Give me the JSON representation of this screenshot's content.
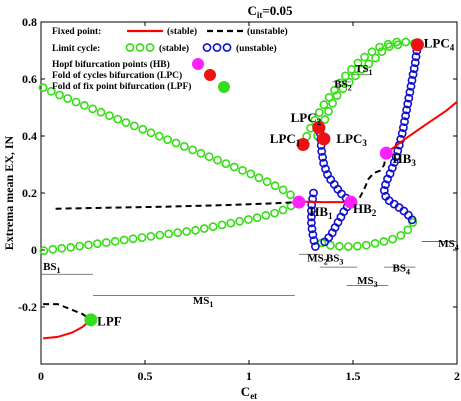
{
  "chart_data": {
    "type": "scatter",
    "title": {
      "base": "C",
      "sub": "it",
      "rest": "=0.05"
    },
    "xlabel": {
      "base": "C",
      "sub": "et"
    },
    "ylabel": "Extrema mean EX, IN",
    "xlim": [
      0,
      2
    ],
    "ylim": [
      -0.4,
      0.8
    ],
    "xticks": [
      {
        "v": 0,
        "t": "0"
      },
      {
        "v": 0.5,
        "t": "0.5"
      },
      {
        "v": 1,
        "t": "1"
      },
      {
        "v": 1.5,
        "t": "1.5"
      },
      {
        "v": 2,
        "t": "2"
      }
    ],
    "yticks": [
      {
        "v": -0.2,
        "t": "-0.2"
      },
      {
        "v": 0,
        "t": "0"
      },
      {
        "v": 0.2,
        "t": "0.2"
      },
      {
        "v": 0.4,
        "t": "0.4"
      },
      {
        "v": 0.6,
        "t": "0.6"
      },
      {
        "v": 0.8,
        "t": "0.8"
      }
    ],
    "grid": false,
    "legend_position": "top-left",
    "legend": {
      "fixed_point": "Fixed point:",
      "stable": "(stable)",
      "unstable": "(unstable)",
      "limit_cycle": "Limit cycle:",
      "lc_stable": "(stable)",
      "lc_unstable": "(unstable)",
      "hb": "Hopf bifurcation points (HB)",
      "lpc": "Fold of  cycles bifurcation (LPC)",
      "lpf": "Fold of  fix point bifurcation (LPF)"
    },
    "colors": {
      "stable_fp": "#ff0000",
      "unstable_fp": "#000000",
      "stable_lc": "#33dd11",
      "unstable_lc": "#1111cc",
      "hb": "#ff22ff",
      "lpc": "#ee1111",
      "lpf": "#33dd22"
    },
    "series": [
      {
        "name": "stable fixed point",
        "style": "solid-red",
        "segments": [
          [
            [
              0.01,
              -0.31
            ],
            [
              0.08,
              -0.305
            ],
            [
              0.15,
              -0.29
            ],
            [
              0.2,
              -0.27
            ],
            [
              0.24,
              -0.245
            ]
          ],
          [
            [
              1.25,
              0.17
            ],
            [
              1.35,
              0.168
            ],
            [
              1.45,
              0.168
            ],
            [
              1.49,
              0.168
            ]
          ],
          [
            [
              1.66,
              0.34
            ],
            [
              1.75,
              0.39
            ],
            [
              1.85,
              0.44
            ],
            [
              1.95,
              0.49
            ],
            [
              2.0,
              0.52
            ]
          ]
        ]
      },
      {
        "name": "unstable fixed point",
        "style": "dashed-black",
        "segments": [
          [
            [
              0.01,
              -0.19
            ],
            [
              0.08,
              -0.19
            ],
            [
              0.15,
              -0.21
            ],
            [
              0.2,
              -0.225
            ],
            [
              0.24,
              -0.245
            ]
          ],
          [
            [
              0.07,
              0.145
            ],
            [
              0.3,
              0.148
            ],
            [
              0.6,
              0.152
            ],
            [
              0.9,
              0.158
            ],
            [
              1.1,
              0.163
            ],
            [
              1.24,
              0.168
            ]
          ],
          [
            [
              1.49,
              0.168
            ],
            [
              1.53,
              0.18
            ],
            [
              1.555,
              0.215
            ],
            [
              1.575,
              0.25
            ],
            [
              1.6,
              0.27
            ],
            [
              1.635,
              0.28
            ],
            [
              1.65,
              0.3
            ],
            [
              1.66,
              0.34
            ]
          ]
        ]
      },
      {
        "name": "stable limit cycle",
        "style": "green-ring",
        "segments": [
          [
            [
              0.01,
              0.57
            ],
            [
              0.1,
              0.54
            ],
            [
              0.2,
              0.51
            ],
            [
              0.3,
              0.48
            ],
            [
              0.4,
              0.45
            ],
            [
              0.5,
              0.42
            ],
            [
              0.6,
              0.39
            ],
            [
              0.7,
              0.36
            ],
            [
              0.8,
              0.33
            ],
            [
              0.9,
              0.3
            ],
            [
              1.0,
              0.27
            ],
            [
              1.1,
              0.235
            ],
            [
              1.18,
              0.205
            ],
            [
              1.24,
              0.17
            ]
          ],
          [
            [
              1.24,
              0.17
            ],
            [
              1.15,
              0.135
            ],
            [
              1.05,
              0.115
            ],
            [
              0.95,
              0.1
            ],
            [
              0.85,
              0.085
            ],
            [
              0.75,
              0.07
            ],
            [
              0.65,
              0.06
            ],
            [
              0.55,
              0.05
            ],
            [
              0.45,
              0.04
            ],
            [
              0.35,
              0.03
            ],
            [
              0.25,
              0.02
            ],
            [
              0.15,
              0.01
            ],
            [
              0.05,
              0.002
            ],
            [
              0.01,
              -0.003
            ]
          ],
          [
            [
              1.26,
              0.37
            ],
            [
              1.29,
              0.42
            ],
            [
              1.32,
              0.46
            ],
            [
              1.36,
              0.51
            ],
            [
              1.4,
              0.55
            ],
            [
              1.45,
              0.6
            ],
            [
              1.5,
              0.64
            ],
            [
              1.56,
              0.68
            ],
            [
              1.62,
              0.71
            ],
            [
              1.7,
              0.73
            ],
            [
              1.78,
              0.73
            ],
            [
              1.81,
              0.72
            ]
          ],
          [
            [
              1.33,
              0.4
            ],
            [
              1.36,
              0.45
            ],
            [
              1.39,
              0.5
            ],
            [
              1.43,
              0.55
            ],
            [
              1.47,
              0.58
            ],
            [
              1.51,
              0.61
            ],
            [
              1.55,
              0.64
            ],
            [
              1.59,
              0.66
            ],
            [
              1.63,
              0.69
            ],
            [
              1.66,
              0.71
            ],
            [
              1.7,
              0.72
            ],
            [
              1.74,
              0.72
            ]
          ],
          [
            [
              1.35,
              0.025
            ],
            [
              1.4,
              0.015
            ],
            [
              1.45,
              0.012
            ],
            [
              1.5,
              0.012
            ],
            [
              1.55,
              0.015
            ],
            [
              1.6,
              0.022
            ],
            [
              1.65,
              0.03
            ],
            [
              1.7,
              0.04
            ],
            [
              1.74,
              0.055
            ],
            [
              1.77,
              0.075
            ],
            [
              1.79,
              0.1
            ]
          ]
        ]
      },
      {
        "name": "unstable limit cycle",
        "style": "blue-ring",
        "segments": [
          [
            [
              1.81,
              0.72
            ],
            [
              1.8,
              0.66
            ],
            [
              1.78,
              0.58
            ],
            [
              1.76,
              0.5
            ],
            [
              1.74,
              0.42
            ],
            [
              1.72,
              0.36
            ],
            [
              1.7,
              0.31
            ],
            [
              1.68,
              0.27
            ],
            [
              1.66,
              0.24
            ],
            [
              1.65,
              0.21
            ],
            [
              1.66,
              0.18
            ],
            [
              1.7,
              0.16
            ],
            [
              1.74,
              0.14
            ],
            [
              1.77,
              0.12
            ],
            [
              1.79,
              0.1
            ]
          ],
          [
            [
              1.49,
              0.168
            ],
            [
              1.46,
              0.14
            ],
            [
              1.43,
              0.1
            ],
            [
              1.4,
              0.06
            ],
            [
              1.37,
              0.03
            ],
            [
              1.35,
              0.025
            ]
          ],
          [
            [
              1.34,
              0.43
            ],
            [
              1.345,
              0.39
            ],
            [
              1.35,
              0.34
            ],
            [
              1.36,
              0.3
            ],
            [
              1.38,
              0.26
            ],
            [
              1.41,
              0.23
            ],
            [
              1.44,
              0.2
            ],
            [
              1.47,
              0.18
            ],
            [
              1.49,
              0.168
            ]
          ],
          [
            [
              1.31,
              0.2
            ],
            [
              1.3,
              0.15
            ],
            [
              1.3,
              0.09
            ],
            [
              1.31,
              0.04
            ],
            [
              1.32,
              0.01
            ]
          ]
        ]
      }
    ],
    "points": [
      {
        "type": "LPF",
        "x": 0.24,
        "y": -0.245
      },
      {
        "type": "HB",
        "x": 1.24,
        "y": 0.168
      },
      {
        "type": "HB",
        "x": 1.49,
        "y": 0.168
      },
      {
        "type": "HB",
        "x": 1.66,
        "y": 0.34
      },
      {
        "type": "LPC",
        "x": 1.26,
        "y": 0.37
      },
      {
        "type": "LPC",
        "x": 1.335,
        "y": 0.43
      },
      {
        "type": "LPC",
        "x": 1.36,
        "y": 0.39
      },
      {
        "type": "LPC",
        "x": 1.81,
        "y": 0.72
      }
    ],
    "bracket_lines": [
      {
        "x0": 0.0,
        "x1": 0.25,
        "y": -0.085
      },
      {
        "x0": 0.25,
        "x1": 1.22,
        "y": -0.16
      },
      {
        "x0": 1.24,
        "x1": 1.34,
        "y": -0.015
      },
      {
        "x0": 1.34,
        "x1": 1.52,
        "y": -0.06
      },
      {
        "x0": 1.47,
        "x1": 1.67,
        "y": -0.125
      },
      {
        "x0": 1.65,
        "x1": 1.8,
        "y": -0.06
      },
      {
        "x0": 1.83,
        "x1": 2.0,
        "y": 0.03
      },
      {
        "x0": 1.4,
        "x1": 1.49,
        "y": 0.59
      },
      {
        "x0": 1.48,
        "x1": 1.58,
        "y": 0.615
      }
    ],
    "annotations": [
      {
        "b": "BS",
        "s": "1",
        "x": 0.01,
        "y": -0.07,
        "size": 11
      },
      {
        "b": "MS",
        "s": "1",
        "x": 0.73,
        "y": -0.19,
        "size": 11
      },
      {
        "b": "MS",
        "s": "2",
        "x": 1.28,
        "y": -0.04,
        "size": 11
      },
      {
        "b": "BS",
        "s": "3",
        "x": 1.37,
        "y": -0.04,
        "size": 11
      },
      {
        "b": "MS",
        "s": "3",
        "x": 1.52,
        "y": -0.12,
        "size": 11
      },
      {
        "b": "BS",
        "s": "4",
        "x": 1.69,
        "y": -0.075,
        "size": 11
      },
      {
        "b": "MS",
        "s": "4",
        "x": 1.91,
        "y": 0.01,
        "size": 11
      },
      {
        "b": "BS",
        "s": "2",
        "x": 1.41,
        "y": 0.57,
        "size": 11
      },
      {
        "b": "TS",
        "s": "1",
        "x": 1.51,
        "y": 0.625,
        "size": 11
      },
      {
        "b": "LPF",
        "s": "",
        "x": 0.27,
        "y": -0.265,
        "size": 13
      },
      {
        "b": "HB",
        "s": "1",
        "x": 1.29,
        "y": 0.12,
        "size": 13
      },
      {
        "b": "HB",
        "s": "2",
        "x": 1.5,
        "y": 0.13,
        "size": 13
      },
      {
        "b": "HB",
        "s": "3",
        "x": 1.69,
        "y": 0.305,
        "size": 13
      },
      {
        "b": "LPC",
        "s": "1",
        "x": 1.1,
        "y": 0.375,
        "size": 13
      },
      {
        "b": "LPC",
        "s": "2",
        "x": 1.2,
        "y": 0.45,
        "size": 13
      },
      {
        "b": "LPC",
        "s": "3",
        "x": 1.42,
        "y": 0.375,
        "size": 13
      },
      {
        "b": "LPC",
        "s": "4",
        "x": 1.84,
        "y": 0.71,
        "size": 13
      }
    ]
  }
}
